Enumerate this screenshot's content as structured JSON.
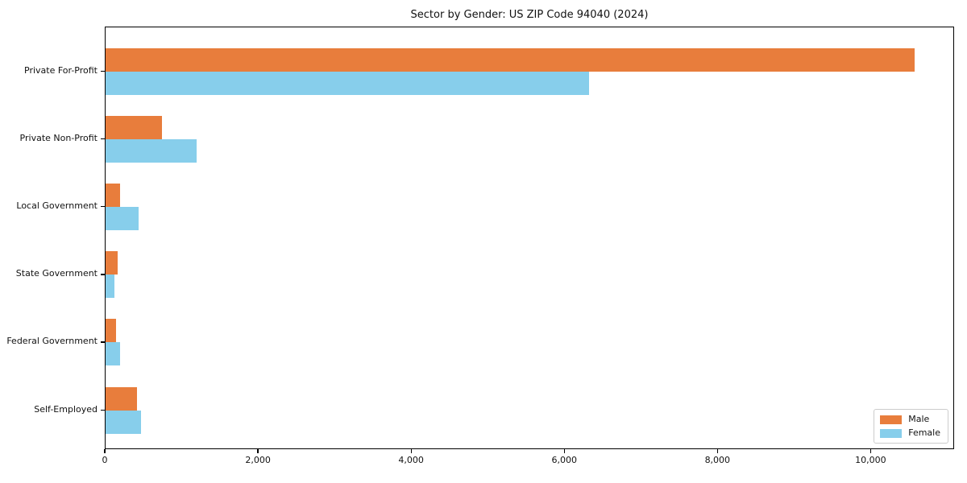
{
  "title": "Sector by Gender: US ZIP Code 94040 (2024)",
  "colors": {
    "male": "#e87d3c",
    "female": "#87ceeb",
    "spine": "#000000",
    "background": "#ffffff",
    "legend_border": "#cccccc"
  },
  "legend": {
    "position": "lower right",
    "items": [
      {
        "label": "Male",
        "color": "#e87d3c"
      },
      {
        "label": "Female",
        "color": "#87ceeb"
      }
    ]
  },
  "chart_data": {
    "type": "bar",
    "orientation": "horizontal",
    "title": "Sector by Gender: US ZIP Code 94040 (2024)",
    "categories": [
      "Private For-Profit",
      "Private Non-Profit",
      "Local Government",
      "State Government",
      "Federal Government",
      "Self-Employed"
    ],
    "series": [
      {
        "name": "Male",
        "color": "#e87d3c",
        "values": [
          10580,
          740,
          190,
          160,
          135,
          415
        ]
      },
      {
        "name": "Female",
        "color": "#87ceeb",
        "values": [
          6330,
          1190,
          430,
          115,
          195,
          465
        ]
      }
    ],
    "xlabel": "",
    "ylabel": "",
    "xlim": [
      0,
      11090
    ],
    "xticks": [
      0,
      2000,
      4000,
      6000,
      8000,
      10000
    ],
    "xtick_labels": [
      "0",
      "2,000",
      "4,000",
      "6,000",
      "8,000",
      "10,000"
    ],
    "grid": false,
    "legend_position": "lower right"
  }
}
